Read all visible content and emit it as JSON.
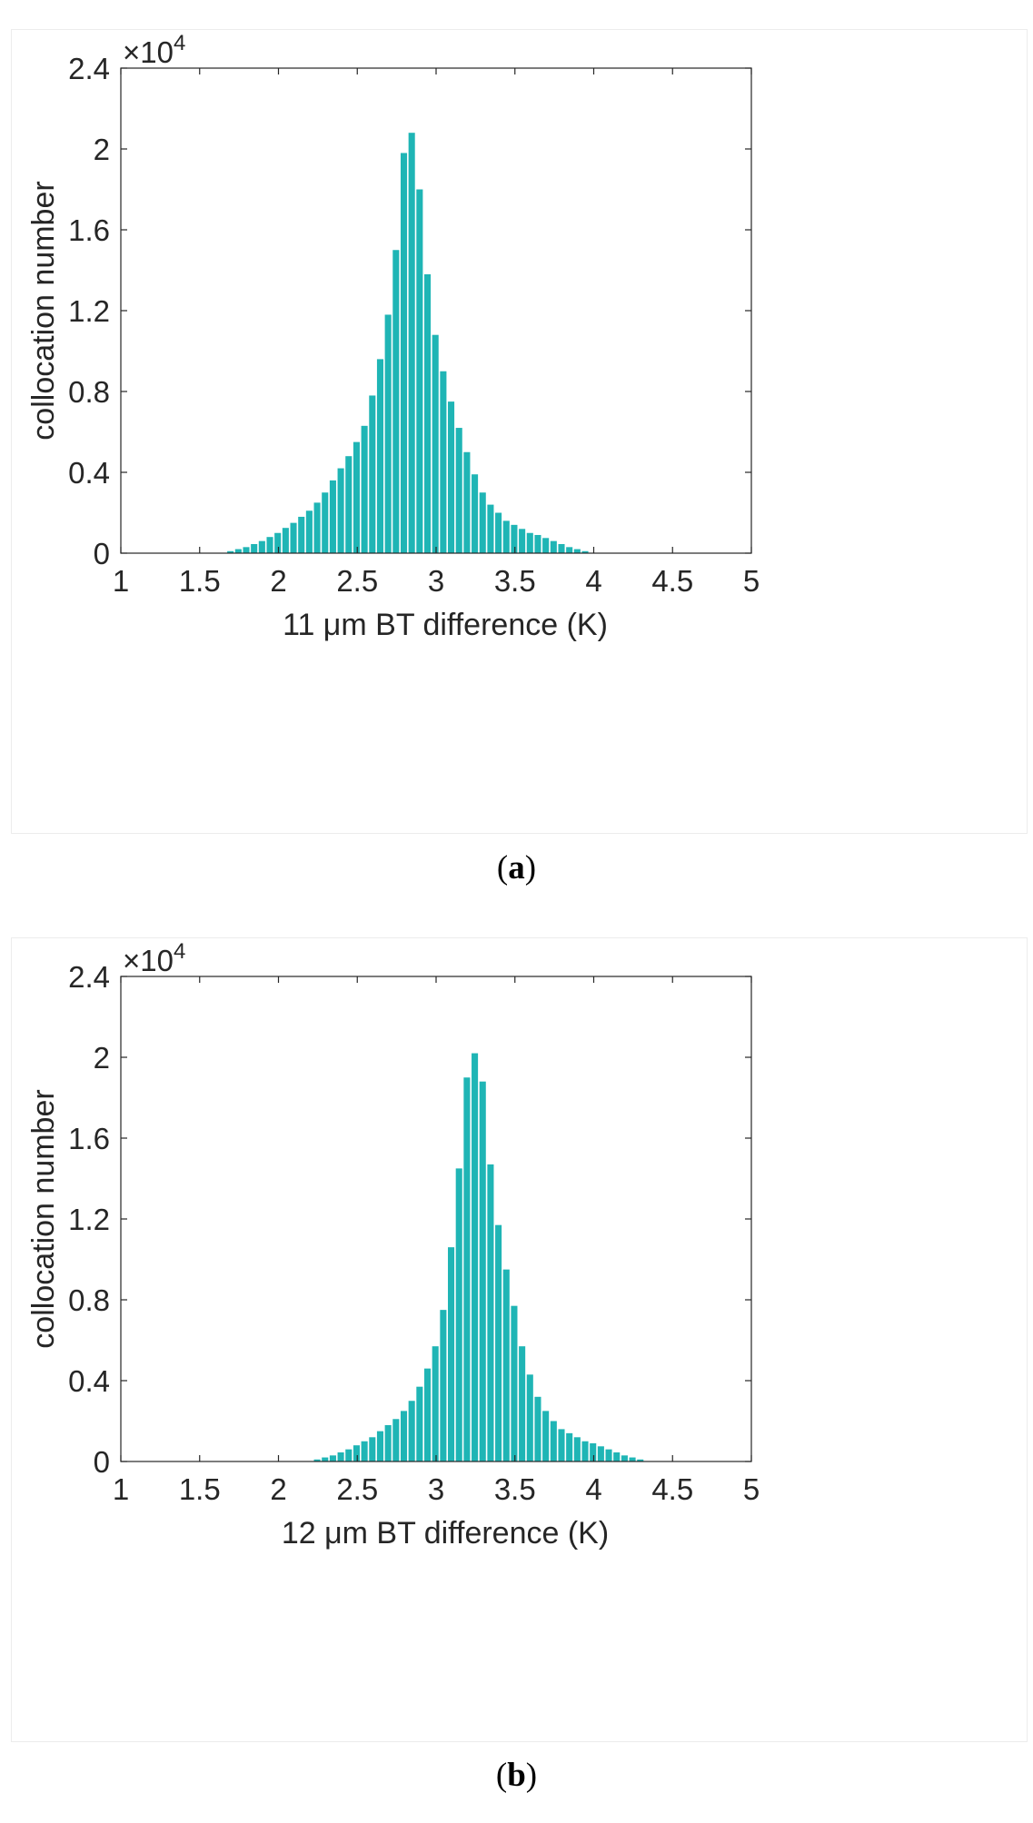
{
  "chart_data": [
    {
      "type": "bar",
      "panel": "a",
      "title": "",
      "xlabel": "11 μm BT difference (K)",
      "ylabel": "collocation number",
      "xlim": [
        1,
        5
      ],
      "ylim": [
        0,
        2.4
      ],
      "xticks": [
        "1",
        "1.5",
        "2",
        "2.5",
        "3",
        "3.5",
        "4",
        "4.5",
        "5"
      ],
      "yticks": [
        "0",
        "0.4",
        "0.8",
        "1.2",
        "1.6",
        "2",
        "2.4"
      ],
      "exponent_base": "×10",
      "exponent_power": "4",
      "bar_color": "#1fb5b5",
      "bin_start": 1.675,
      "bin_width": 0.05,
      "values": [
        0.01,
        0.02,
        0.03,
        0.045,
        0.06,
        0.08,
        0.1,
        0.125,
        0.15,
        0.18,
        0.21,
        0.25,
        0.3,
        0.36,
        0.42,
        0.48,
        0.55,
        0.63,
        0.78,
        0.96,
        1.18,
        1.5,
        1.98,
        2.08,
        1.8,
        1.38,
        1.08,
        0.9,
        0.75,
        0.62,
        0.5,
        0.39,
        0.3,
        0.24,
        0.2,
        0.16,
        0.14,
        0.12,
        0.1,
        0.09,
        0.075,
        0.06,
        0.045,
        0.03,
        0.02,
        0.01
      ]
    },
    {
      "type": "bar",
      "panel": "b",
      "title": "",
      "xlabel": "12 μm BT difference (K)",
      "ylabel": "collocation number",
      "xlim": [
        1,
        5
      ],
      "ylim": [
        0,
        2.4
      ],
      "xticks": [
        "1",
        "1.5",
        "2",
        "2.5",
        "3",
        "3.5",
        "4",
        "4.5",
        "5"
      ],
      "yticks": [
        "0",
        "0.4",
        "0.8",
        "1.2",
        "1.6",
        "2",
        "2.4"
      ],
      "exponent_base": "×10",
      "exponent_power": "4",
      "bar_color": "#1fb5b5",
      "bin_start": 2.225,
      "bin_width": 0.05,
      "values": [
        0.01,
        0.02,
        0.03,
        0.045,
        0.06,
        0.08,
        0.1,
        0.12,
        0.15,
        0.18,
        0.21,
        0.25,
        0.3,
        0.37,
        0.46,
        0.57,
        0.75,
        1.06,
        1.45,
        1.9,
        2.02,
        1.88,
        1.47,
        1.17,
        0.95,
        0.77,
        0.57,
        0.43,
        0.32,
        0.25,
        0.2,
        0.16,
        0.14,
        0.12,
        0.1,
        0.09,
        0.075,
        0.06,
        0.045,
        0.03,
        0.02,
        0.01
      ]
    }
  ],
  "captions": [
    {
      "open": "(",
      "letter": "a",
      "close": ")"
    },
    {
      "open": "(",
      "letter": "b",
      "close": ")"
    }
  ]
}
